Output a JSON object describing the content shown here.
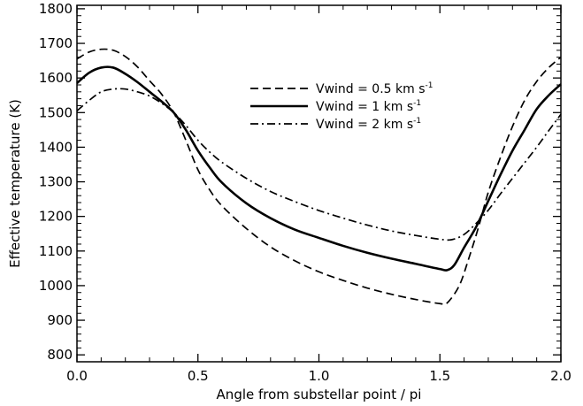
{
  "chart_data": {
    "type": "line",
    "xlabel": "Angle from substellar point / pi",
    "ylabel": "Effective temperature (K)",
    "xlim": [
      0.0,
      2.0
    ],
    "ylim": [
      780,
      1810
    ],
    "x_ticks": [
      "0.0",
      "0.5",
      "1.0",
      "1.5",
      "2.0"
    ],
    "y_ticks": [
      "800",
      "900",
      "1000",
      "1100",
      "1200",
      "1300",
      "1400",
      "1500",
      "1600",
      "1700",
      "1800"
    ],
    "legend_position": "upper-center",
    "grid": false,
    "series": [
      {
        "name": "Vwind = 0.5 km s-1",
        "legend_main": "Vwind = 0.5 km s",
        "legend_sup": "-1",
        "style": "dashed",
        "x": [
          0.0,
          0.05,
          0.1,
          0.15,
          0.2,
          0.25,
          0.3,
          0.35,
          0.4,
          0.45,
          0.5,
          0.55,
          0.6,
          0.7,
          0.8,
          0.9,
          1.0,
          1.1,
          1.2,
          1.3,
          1.4,
          1.5,
          1.53,
          1.58,
          1.62,
          1.66,
          1.7,
          1.75,
          1.8,
          1.85,
          1.9,
          1.95,
          2.0
        ],
        "values": [
          1655,
          1675,
          1683,
          1680,
          1662,
          1632,
          1592,
          1553,
          1500,
          1420,
          1335,
          1275,
          1230,
          1165,
          1112,
          1072,
          1040,
          1015,
          993,
          975,
          960,
          948,
          950,
          1000,
          1080,
          1170,
          1270,
          1370,
          1460,
          1535,
          1590,
          1630,
          1660
        ]
      },
      {
        "name": "Vwind = 1 km s-1",
        "legend_main": "Vwind = 1 km s",
        "legend_sup": "-1",
        "style": "solid",
        "x": [
          0.0,
          0.05,
          0.1,
          0.15,
          0.2,
          0.25,
          0.3,
          0.35,
          0.4,
          0.45,
          0.5,
          0.55,
          0.6,
          0.7,
          0.8,
          0.9,
          1.0,
          1.1,
          1.2,
          1.3,
          1.4,
          1.5,
          1.53,
          1.56,
          1.6,
          1.65,
          1.7,
          1.75,
          1.8,
          1.85,
          1.9,
          1.95,
          2.0
        ],
        "values": [
          1585,
          1615,
          1630,
          1630,
          1612,
          1588,
          1560,
          1532,
          1500,
          1450,
          1390,
          1340,
          1297,
          1238,
          1195,
          1162,
          1138,
          1115,
          1095,
          1078,
          1063,
          1048,
          1045,
          1060,
          1110,
          1170,
          1245,
          1320,
          1390,
          1450,
          1510,
          1550,
          1582
        ]
      },
      {
        "name": "Vwind = 2 km s-1",
        "legend_main": "Vwind = 2 km s",
        "legend_sup": "-1",
        "style": "dash-dot",
        "x": [
          0.0,
          0.05,
          0.1,
          0.15,
          0.2,
          0.25,
          0.3,
          0.35,
          0.4,
          0.45,
          0.5,
          0.55,
          0.6,
          0.7,
          0.8,
          0.9,
          1.0,
          1.1,
          1.2,
          1.3,
          1.4,
          1.5,
          1.55,
          1.6,
          1.65,
          1.7,
          1.75,
          1.8,
          1.85,
          1.9,
          1.95,
          2.0
        ],
        "values": [
          1505,
          1535,
          1560,
          1568,
          1568,
          1560,
          1548,
          1527,
          1500,
          1463,
          1420,
          1385,
          1356,
          1310,
          1272,
          1243,
          1217,
          1195,
          1175,
          1158,
          1145,
          1134,
          1133,
          1148,
          1180,
          1218,
          1265,
          1310,
          1355,
          1400,
          1448,
          1495
        ]
      }
    ]
  }
}
